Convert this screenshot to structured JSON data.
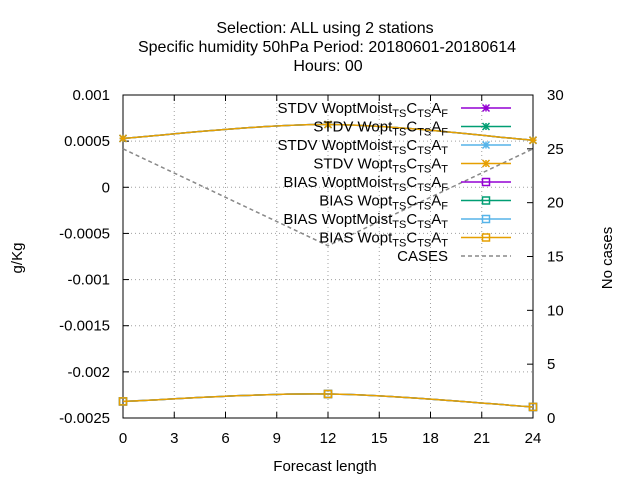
{
  "chart_data": {
    "type": "line",
    "title": {
      "line1": "Selection: ALL using     2 stations",
      "line2": "Specific humidity 50hPa   Period: 20180601-20180614",
      "line3": "Hours:  00"
    },
    "xlabel": "Forecast length",
    "ylabel": "g/Kg",
    "y2label": "No cases",
    "xlim": [
      0,
      24
    ],
    "ylim": [
      -0.0025,
      0.001
    ],
    "y2lim": [
      0,
      30
    ],
    "xticks": [
      "0",
      "3",
      "6",
      "9",
      "12",
      "15",
      "18",
      "21",
      "24"
    ],
    "yticks": [
      "0.001",
      "0.0005",
      "0",
      "-0.0005",
      "-0.001",
      "-0.0015",
      "-0.002",
      "-0.0025"
    ],
    "y2ticks": [
      "30",
      "25",
      "20",
      "15",
      "10",
      "5",
      "0"
    ],
    "grid": true,
    "legend_position": "top-right",
    "x": [
      0,
      12,
      24
    ],
    "series": [
      {
        "name": {
          "pre": "STDV WoptMoist",
          "sub1": "TS",
          "mid1": "C",
          "sub2": "TS",
          "mid2": "A",
          "sub3": "F"
        },
        "axis": "y1",
        "marker": "x",
        "color": "#9400d3",
        "values": [
          0.00053,
          0.00068,
          0.00051
        ]
      },
      {
        "name": {
          "pre": "STDV Wopt",
          "sub1": "TS",
          "mid1": "C",
          "sub2": "TS",
          "mid2": "A",
          "sub3": "F"
        },
        "axis": "y1",
        "marker": "x",
        "color": "#009e73",
        "values": [
          0.00053,
          0.00068,
          0.00051
        ]
      },
      {
        "name": {
          "pre": "STDV WoptMoist",
          "sub1": "TS",
          "mid1": "C",
          "sub2": "TS",
          "mid2": "A",
          "sub3": "T"
        },
        "axis": "y1",
        "marker": "x",
        "color": "#56b4e9",
        "values": [
          0.00053,
          0.00068,
          0.00051
        ]
      },
      {
        "name": {
          "pre": "STDV Wopt",
          "sub1": "TS",
          "mid1": "C",
          "sub2": "TS",
          "mid2": "A",
          "sub3": "T"
        },
        "axis": "y1",
        "marker": "x",
        "color": "#e69f00",
        "values": [
          0.00053,
          0.00068,
          0.00051
        ]
      },
      {
        "name": {
          "pre": "BIAS WoptMoist",
          "sub1": "TS",
          "mid1": "C",
          "sub2": "TS",
          "mid2": "A",
          "sub3": "F"
        },
        "axis": "y1",
        "marker": "square",
        "color": "#9400d3",
        "values": [
          -0.00232,
          -0.00224,
          -0.00238
        ]
      },
      {
        "name": {
          "pre": "BIAS Wopt",
          "sub1": "TS",
          "mid1": "C",
          "sub2": "TS",
          "mid2": "A",
          "sub3": "F"
        },
        "axis": "y1",
        "marker": "square",
        "color": "#009e73",
        "values": [
          -0.00232,
          -0.00224,
          -0.00238
        ]
      },
      {
        "name": {
          "pre": "BIAS WoptMoist",
          "sub1": "TS",
          "mid1": "C",
          "sub2": "TS",
          "mid2": "A",
          "sub3": "T"
        },
        "axis": "y1",
        "marker": "square",
        "color": "#56b4e9",
        "values": [
          -0.00232,
          -0.00224,
          -0.00238
        ]
      },
      {
        "name": {
          "pre": "BIAS Wopt",
          "sub1": "TS",
          "mid1": "C",
          "sub2": "TS",
          "mid2": "A",
          "sub3": "T"
        },
        "axis": "y1",
        "marker": "square",
        "color": "#e69f00",
        "values": [
          -0.00232,
          -0.00224,
          -0.00238
        ]
      },
      {
        "name": {
          "pre": "CASES",
          "sub1": "",
          "mid1": "",
          "sub2": "",
          "mid2": "",
          "sub3": ""
        },
        "axis": "y2",
        "marker": "none",
        "dash": true,
        "color": "#888888",
        "values": [
          25,
          16,
          25
        ]
      }
    ]
  }
}
